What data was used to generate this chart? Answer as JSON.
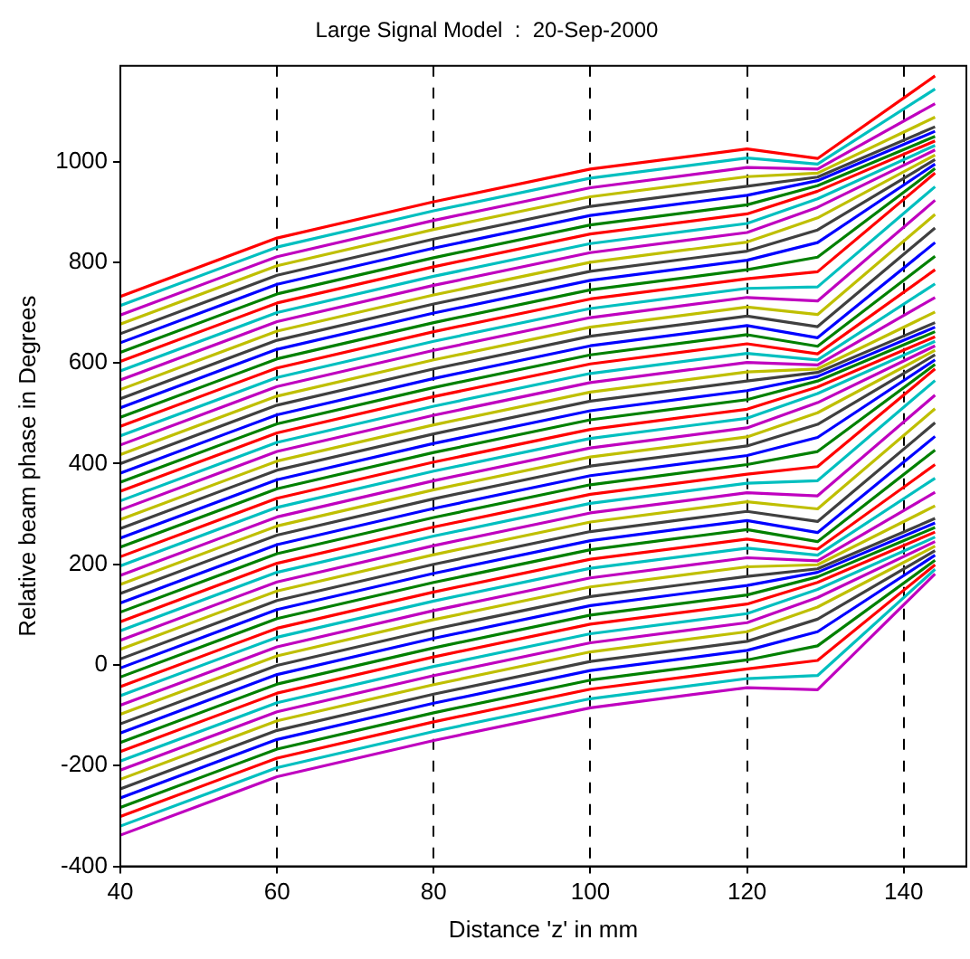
{
  "chart_data": {
    "type": "line",
    "title": "Large Signal Model  :  20-Sep-2000",
    "xlabel": "Distance 'z' in mm",
    "ylabel": "Relative beam phase in Degrees",
    "x": [
      40,
      60,
      80,
      100,
      120,
      129,
      144
    ],
    "xlim": [
      40,
      148
    ],
    "xticks": [
      40,
      60,
      80,
      100,
      120,
      140
    ],
    "ylim": [
      -400,
      1190
    ],
    "yticks": [
      -400,
      -200,
      0,
      200,
      400,
      600,
      800,
      1000
    ],
    "grid": "x",
    "line_style": "solid",
    "marker": "none",
    "series": [
      {
        "color": "#ff0000",
        "values": [
          732,
          848,
          920,
          985,
          1025,
          1006,
          1170
        ]
      },
      {
        "color": "#00bfbf",
        "values": [
          714,
          830,
          902,
          967,
          1007,
          995,
          1144
        ]
      },
      {
        "color": "#bf00bf",
        "values": [
          695,
          811,
          883,
          948,
          988,
          985,
          1115
        ]
      },
      {
        "color": "#bfbf00",
        "values": [
          677,
          793,
          865,
          930,
          970,
          977,
          1088
        ]
      },
      {
        "color": "#404040",
        "values": [
          658,
          774,
          846,
          911,
          951,
          969,
          1069
        ]
      },
      {
        "color": "#0000ff",
        "values": [
          640,
          756,
          828,
          893,
          933,
          962,
          1060
        ]
      },
      {
        "color": "#008000",
        "values": [
          621,
          737,
          809,
          874,
          914,
          952,
          1050
        ]
      },
      {
        "color": "#ff0000",
        "values": [
          603,
          719,
          791,
          856,
          896,
          941,
          1041
        ]
      },
      {
        "color": "#00bfbf",
        "values": [
          584,
          700,
          772,
          837,
          877,
          926,
          1032
        ]
      },
      {
        "color": "#bf00bf",
        "values": [
          566,
          682,
          754,
          819,
          859,
          909,
          1023
        ]
      },
      {
        "color": "#bfbf00",
        "values": [
          547,
          663,
          735,
          800,
          840,
          888,
          1013
        ]
      },
      {
        "color": "#404040",
        "values": [
          529,
          645,
          717,
          782,
          822,
          864,
          1004
        ]
      },
      {
        "color": "#0000ff",
        "values": [
          511,
          627,
          699,
          764,
          804,
          839,
          995
        ]
      },
      {
        "color": "#008000",
        "values": [
          492,
          608,
          680,
          745,
          785,
          810,
          986
        ]
      },
      {
        "color": "#ff0000",
        "values": [
          474,
          590,
          662,
          727,
          767,
          781,
          977
        ]
      },
      {
        "color": "#00bfbf",
        "values": [
          455,
          571,
          643,
          708,
          748,
          751,
          950
        ]
      },
      {
        "color": "#bf00bf",
        "values": [
          437,
          553,
          625,
          690,
          730,
          723,
          923
        ]
      },
      {
        "color": "#bfbf00",
        "values": [
          418,
          534,
          606,
          671,
          711,
          696,
          895
        ]
      },
      {
        "color": "#404040",
        "values": [
          400,
          516,
          588,
          653,
          693,
          672,
          868
        ]
      },
      {
        "color": "#0000ff",
        "values": [
          381,
          497,
          569,
          634,
          674,
          650,
          839
        ]
      },
      {
        "color": "#008000",
        "values": [
          363,
          479,
          551,
          616,
          656,
          633,
          812
        ]
      },
      {
        "color": "#ff0000",
        "values": [
          345,
          461,
          533,
          598,
          638,
          618,
          785
        ]
      },
      {
        "color": "#00bfbf",
        "values": [
          326,
          442,
          514,
          579,
          619,
          606,
          757
        ]
      },
      {
        "color": "#bf00bf",
        "values": [
          308,
          424,
          496,
          561,
          601,
          596,
          730
        ]
      },
      {
        "color": "#bfbf00",
        "values": [
          289,
          405,
          477,
          542,
          582,
          588,
          701
        ]
      },
      {
        "color": "#404040",
        "values": [
          271,
          387,
          459,
          524,
          564,
          581,
          680
        ]
      },
      {
        "color": "#0000ff",
        "values": [
          252,
          368,
          440,
          505,
          545,
          573,
          671
        ]
      },
      {
        "color": "#008000",
        "values": [
          234,
          350,
          422,
          487,
          527,
          564,
          662
        ]
      },
      {
        "color": "#ff0000",
        "values": [
          215,
          331,
          403,
          468,
          508,
          552,
          652
        ]
      },
      {
        "color": "#00bfbf",
        "values": [
          197,
          313,
          385,
          450,
          490,
          539,
          643
        ]
      },
      {
        "color": "#bf00bf",
        "values": [
          178,
          294,
          366,
          431,
          471,
          521,
          634
        ]
      },
      {
        "color": "#bfbf00",
        "values": [
          160,
          276,
          348,
          413,
          453,
          501,
          625
        ]
      },
      {
        "color": "#404040",
        "values": [
          142,
          258,
          330,
          395,
          435,
          478,
          616
        ]
      },
      {
        "color": "#0000ff",
        "values": [
          123,
          239,
          311,
          376,
          416,
          452,
          606
        ]
      },
      {
        "color": "#008000",
        "values": [
          105,
          221,
          293,
          358,
          398,
          424,
          597
        ]
      },
      {
        "color": "#ff0000",
        "values": [
          86,
          202,
          274,
          339,
          379,
          394,
          588
        ]
      },
      {
        "color": "#00bfbf",
        "values": [
          68,
          184,
          256,
          321,
          361,
          366,
          565
        ]
      },
      {
        "color": "#bf00bf",
        "values": [
          49,
          165,
          237,
          302,
          342,
          336,
          536
        ]
      },
      {
        "color": "#bfbf00",
        "values": [
          31,
          147,
          219,
          284,
          324,
          310,
          509
        ]
      },
      {
        "color": "#404040",
        "values": [
          12,
          128,
          200,
          265,
          305,
          285,
          481
        ]
      },
      {
        "color": "#0000ff",
        "values": [
          -6,
          110,
          182,
          247,
          287,
          263,
          454
        ]
      },
      {
        "color": "#008000",
        "values": [
          -24,
          92,
          164,
          229,
          269,
          245,
          427
        ]
      },
      {
        "color": "#ff0000",
        "values": [
          -43,
          73,
          145,
          210,
          250,
          230,
          398
        ]
      },
      {
        "color": "#00bfbf",
        "values": [
          -61,
          55,
          127,
          192,
          232,
          218,
          371
        ]
      },
      {
        "color": "#bf00bf",
        "values": [
          -80,
          36,
          108,
          173,
          213,
          207,
          343
        ]
      },
      {
        "color": "#bfbf00",
        "values": [
          -98,
          18,
          90,
          155,
          195,
          199,
          316
        ]
      },
      {
        "color": "#404040",
        "values": [
          -117,
          -1,
          71,
          136,
          176,
          191,
          291
        ]
      },
      {
        "color": "#0000ff",
        "values": [
          -135,
          -19,
          53,
          118,
          158,
          184,
          282
        ]
      },
      {
        "color": "#008000",
        "values": [
          -154,
          -38,
          34,
          99,
          139,
          175,
          273
        ]
      },
      {
        "color": "#ff0000",
        "values": [
          -172,
          -56,
          16,
          81,
          121,
          164,
          264
        ]
      },
      {
        "color": "#00bfbf",
        "values": [
          -191,
          -75,
          -3,
          62,
          102,
          150,
          254
        ]
      },
      {
        "color": "#bf00bf",
        "values": [
          -209,
          -93,
          -21,
          44,
          84,
          134,
          245
        ]
      },
      {
        "color": "#bfbf00",
        "values": [
          -227,
          -111,
          -39,
          26,
          66,
          115,
          236
        ]
      },
      {
        "color": "#404040",
        "values": [
          -246,
          -130,
          -58,
          7,
          47,
          91,
          227
        ]
      },
      {
        "color": "#0000ff",
        "values": [
          -264,
          -148,
          -76,
          -11,
          29,
          66,
          218
        ]
      },
      {
        "color": "#008000",
        "values": [
          -283,
          -167,
          -95,
          -30,
          10,
          38,
          208
        ]
      },
      {
        "color": "#ff0000",
        "values": [
          -301,
          -185,
          -113,
          -48,
          -8,
          9,
          199
        ]
      },
      {
        "color": "#00bfbf",
        "values": [
          -320,
          -204,
          -132,
          -67,
          -27,
          -21,
          190
        ]
      },
      {
        "color": "#bf00bf",
        "values": [
          -338,
          -222,
          -150,
          -85,
          -45,
          -49,
          181
        ]
      }
    ]
  }
}
